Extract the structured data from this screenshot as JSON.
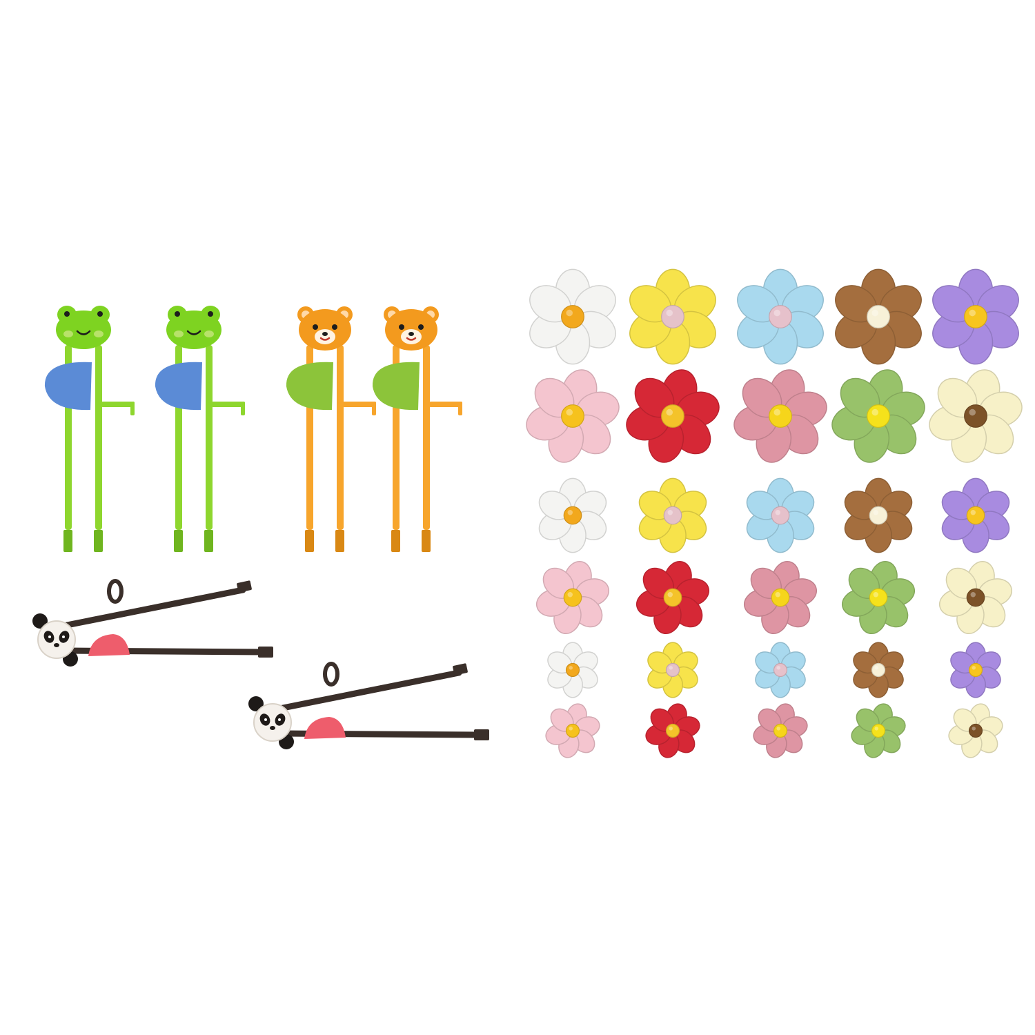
{
  "scene": {
    "background": "#ffffff"
  },
  "chopsticks": {
    "upright_pairs": [
      {
        "name": "frog",
        "stick_color": "#8ED62E",
        "stick_dark": "#6FB51F",
        "head_color": "#7ED321",
        "cheek_color": "#B8E26A",
        "rest_color": "#5B8BD6"
      },
      {
        "name": "frog",
        "stick_color": "#8ED62E",
        "stick_dark": "#6FB51F",
        "head_color": "#7ED321",
        "cheek_color": "#B8E26A",
        "rest_color": "#5B8BD6"
      },
      {
        "name": "bear",
        "stick_color": "#F7A52C",
        "stick_dark": "#D98814",
        "head_color": "#F39A1E",
        "cheek_color": "#FFD9A8",
        "rest_color": "#8CC43A"
      },
      {
        "name": "bear",
        "stick_color": "#F7A52C",
        "stick_dark": "#D98814",
        "head_color": "#F39A1E",
        "cheek_color": "#FFD9A8",
        "rest_color": "#8CC43A"
      }
    ],
    "panda_pairs": [
      {
        "name": "panda",
        "stick_color": "#3A2F2A",
        "head_color": "#F5F1EC",
        "patch_color": "#1E1A18",
        "rest_color": "#EE5D6C"
      },
      {
        "name": "panda",
        "stick_color": "#3A2F2A",
        "head_color": "#F5F1EC",
        "patch_color": "#1E1A18",
        "rest_color": "#EE5D6C"
      }
    ]
  },
  "flowers": {
    "rows": [
      [
        {
          "petal": "#F4F4F2",
          "center": "#F2A81D"
        },
        {
          "petal": "#F7E34B",
          "center": "#E5C2C9"
        },
        {
          "petal": "#A9D9EE",
          "center": "#E6C1CB"
        },
        {
          "petal": "#A46E3E",
          "center": "#F7F1D8"
        },
        {
          "petal": "#A88BE0",
          "center": "#F7C51E"
        }
      ],
      [
        {
          "petal": "#F4C5CF",
          "center": "#F6C21D"
        },
        {
          "petal": "#D62836",
          "center": "#F4C32A"
        },
        {
          "petal": "#DE95A3",
          "center": "#F6D51B"
        },
        {
          "petal": "#98C26A",
          "center": "#F5E21B"
        },
        {
          "petal": "#F7F1C8",
          "center": "#7C5228"
        }
      ],
      [
        {
          "petal": "#F4F4F2",
          "center": "#F2A81D"
        },
        {
          "petal": "#F7E34B",
          "center": "#E5C2C9"
        },
        {
          "petal": "#A9D9EE",
          "center": "#E6C1CB"
        },
        {
          "petal": "#A46E3E",
          "center": "#F7F1D8"
        },
        {
          "petal": "#A88BE0",
          "center": "#F7C51E"
        }
      ],
      [
        {
          "petal": "#F4C5CF",
          "center": "#F6C21D"
        },
        {
          "petal": "#D62836",
          "center": "#F4C32A"
        },
        {
          "petal": "#DE95A3",
          "center": "#F6D51B"
        },
        {
          "petal": "#98C26A",
          "center": "#F5E21B"
        },
        {
          "petal": "#F7F1C8",
          "center": "#7C5228"
        }
      ],
      [
        {
          "petal": "#F4F4F2",
          "center": "#F2A81D"
        },
        {
          "petal": "#F7E34B",
          "center": "#E5C2C9"
        },
        {
          "petal": "#A9D9EE",
          "center": "#E6C1CB"
        },
        {
          "petal": "#A46E3E",
          "center": "#F7F1D8"
        },
        {
          "petal": "#A88BE0",
          "center": "#F7C51E"
        }
      ],
      [
        {
          "petal": "#F4C5CF",
          "center": "#F6C21D"
        },
        {
          "petal": "#D62836",
          "center": "#F4C32A"
        },
        {
          "petal": "#DE95A3",
          "center": "#F6D51B"
        },
        {
          "petal": "#98C26A",
          "center": "#F5E21B"
        },
        {
          "petal": "#F7F1C8",
          "center": "#7C5228"
        }
      ]
    ]
  }
}
